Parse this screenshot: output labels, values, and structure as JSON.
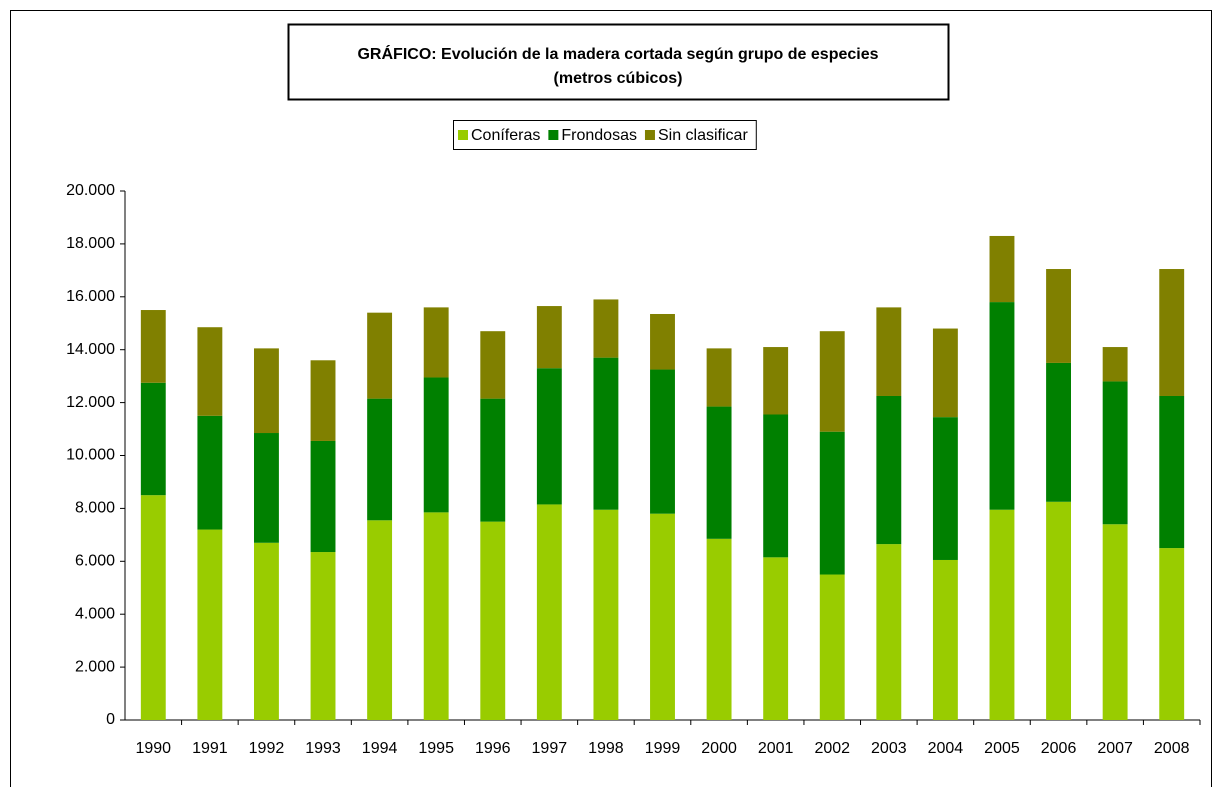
{
  "chart_data": {
    "type": "stacked_bar",
    "title": "GRÁFICO: Evolución de la  madera cortada según grupo de especies",
    "subtitle": "(metros cúbicos)",
    "categories": [
      "1990",
      "1991",
      "1992",
      "1993",
      "1994",
      "1995",
      "1996",
      "1997",
      "1998",
      "1999",
      "2000",
      "2001",
      "2002",
      "2003",
      "2004",
      "2005",
      "2006",
      "2007",
      "2008"
    ],
    "series": [
      {
        "name": "Coníferas",
        "color": "#99cc00",
        "values": [
          8500,
          7200,
          6700,
          6350,
          7550,
          7850,
          7500,
          8150,
          7950,
          7800,
          6850,
          6150,
          5500,
          6650,
          6050,
          7950,
          8250,
          7400,
          6500
        ]
      },
      {
        "name": "Frondosas",
        "color": "#008000",
        "values": [
          4250,
          4300,
          4150,
          4200,
          4600,
          5100,
          4650,
          5150,
          5750,
          5450,
          5000,
          5400,
          5400,
          5600,
          5400,
          7850,
          5250,
          5400,
          5750
        ]
      },
      {
        "name": "Sin clasificar",
        "color": "#808000",
        "values": [
          2750,
          3350,
          3200,
          3050,
          3250,
          2650,
          2550,
          2350,
          2200,
          2100,
          2200,
          2550,
          3800,
          3350,
          3350,
          2500,
          3550,
          1300,
          4800
        ]
      }
    ],
    "ylim": [
      0,
      20000
    ],
    "yticks": [
      0,
      {
        "value": 2000,
        "label": "2.000"
      },
      {
        "value": 4000,
        "label": "4.000"
      },
      {
        "value": 6000,
        "label": "6.000"
      },
      {
        "value": 8000,
        "label": "8.000"
      },
      {
        "value": 10000,
        "label": "10.000"
      },
      {
        "value": 12000,
        "label": "12.000"
      },
      {
        "value": 14000,
        "label": "14.000"
      },
      {
        "value": 16000,
        "label": "16.000"
      },
      {
        "value": 18000,
        "label": "18.000"
      },
      {
        "value": 20000,
        "label": "20.000"
      }
    ],
    "grid": false,
    "legend": "top"
  }
}
